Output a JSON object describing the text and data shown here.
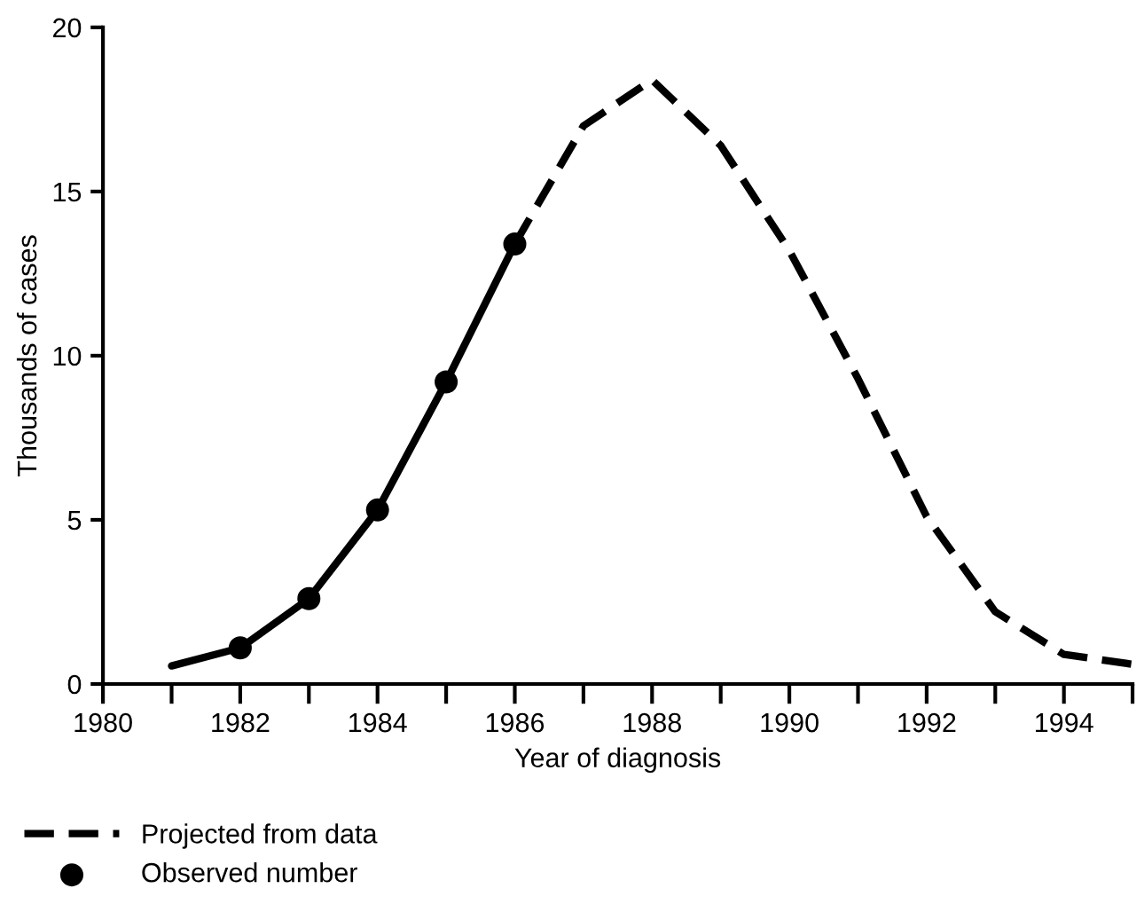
{
  "chart_data": {
    "type": "line",
    "xlabel": "Year of diagnosis",
    "ylabel": "Thousands of cases",
    "xlim": [
      1980,
      1995
    ],
    "ylim": [
      0,
      20
    ],
    "xticks": [
      1980,
      {
        "value": 1981,
        "label": null
      },
      1982,
      {
        "value": 1983,
        "label": null
      },
      1984,
      {
        "value": 1985,
        "label": null
      },
      1986,
      {
        "value": 1987,
        "label": null
      },
      1988,
      {
        "value": 1989,
        "label": null
      },
      1990,
      {
        "value": 1991,
        "label": null
      },
      1992,
      {
        "value": 1993,
        "label": null
      },
      1994,
      {
        "value": 1995,
        "label": null
      }
    ],
    "yticks": [
      0,
      5,
      10,
      15,
      20
    ],
    "grid": false,
    "legend": "bottom left",
    "series": [
      {
        "color": "#000000",
        "line_style": "solid",
        "marker": "none",
        "x": [
          1981,
          1982,
          1983,
          1984,
          1985,
          1986
        ],
        "values": [
          0.55,
          1.1,
          2.6,
          5.3,
          9.2,
          13.4
        ]
      },
      {
        "name": "Projected from data",
        "color": "#000000",
        "line_style": "dashed",
        "marker": "none",
        "x": [
          1986,
          1987,
          1988,
          1989,
          1990,
          1991,
          1992,
          1993,
          1994,
          1995
        ],
        "values": [
          13.4,
          17.0,
          18.4,
          16.4,
          13.2,
          9.3,
          5.1,
          2.2,
          0.9,
          0.6
        ]
      },
      {
        "type": "scatter",
        "name": "Observed number",
        "color": "#000000",
        "marker": "circle",
        "x": [
          1982,
          1983,
          1984,
          1985,
          1986
        ],
        "values": [
          1.1,
          2.6,
          5.3,
          9.2,
          13.4
        ]
      }
    ]
  }
}
